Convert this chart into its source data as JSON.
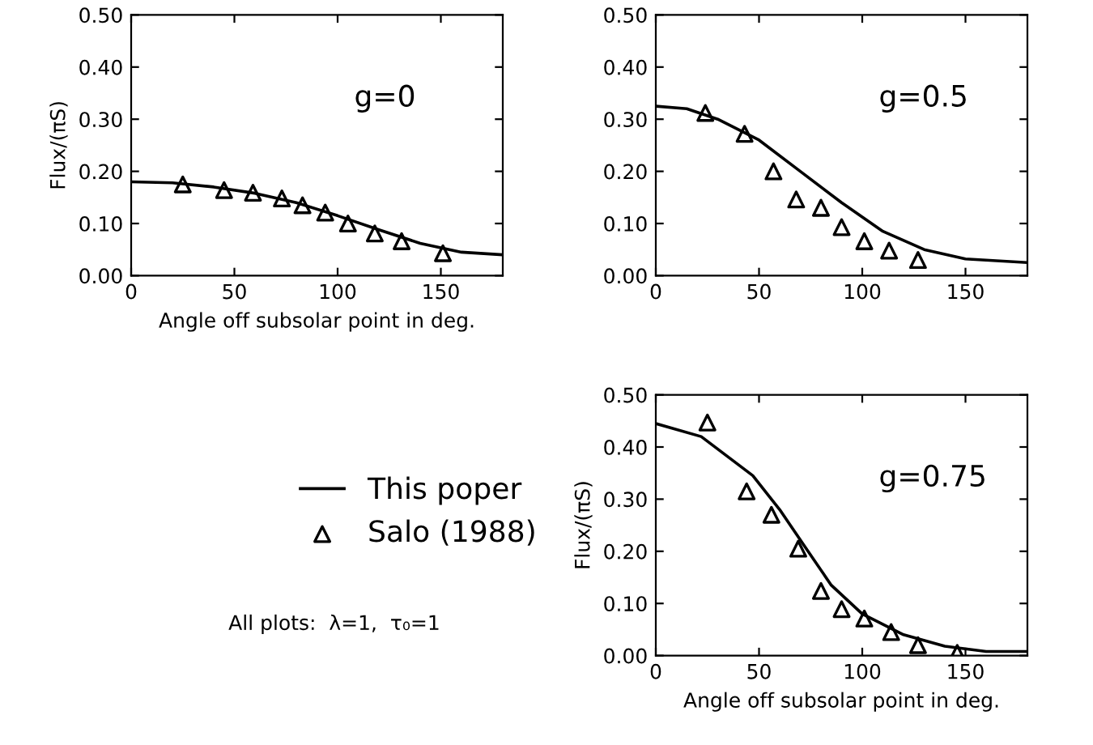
{
  "chart_data": [
    {
      "type": "line",
      "xlabel": "Angle off subsolar point in deg.",
      "ylabel": "Flux/(πS)",
      "annotations": [
        "g=0"
      ],
      "xlim": [
        0,
        180
      ],
      "ylim": [
        0,
        0.5
      ],
      "xticks": [
        0,
        50,
        100,
        150
      ],
      "yticks": [
        {
          "value": 0,
          "label": "0.00"
        },
        {
          "value": 0.1,
          "label": "0.10"
        },
        {
          "value": 0.2,
          "label": "0.20"
        },
        {
          "value": 0.3,
          "label": "0.30"
        },
        {
          "value": 0.4,
          "label": "0.40"
        },
        {
          "value": 0.5,
          "label": "0.50"
        }
      ],
      "grid": false,
      "series": [
        {
          "color": "#000000",
          "marker": "none",
          "x": [
            0,
            20,
            40,
            60,
            80,
            100,
            120,
            140,
            160,
            180
          ],
          "values": [
            0.18,
            0.178,
            0.17,
            0.158,
            0.14,
            0.115,
            0.088,
            0.062,
            0.045,
            0.04
          ]
        },
        {
          "type": "scatter",
          "color": "#000000",
          "marker": "triangle",
          "x": [
            25,
            45,
            59,
            73,
            83,
            94,
            105,
            118,
            131,
            151
          ],
          "values": [
            0.175,
            0.164,
            0.159,
            0.148,
            0.135,
            0.121,
            0.1,
            0.081,
            0.066,
            0.043
          ]
        }
      ]
    },
    {
      "type": "line",
      "annotations": [
        "g=0.5"
      ],
      "xlim": [
        0,
        180
      ],
      "ylim": [
        0,
        0.5
      ],
      "xticks": [
        0,
        50,
        100,
        150
      ],
      "yticks": [
        {
          "value": 0,
          "label": "0.00"
        },
        {
          "value": 0.1,
          "label": "0.10"
        },
        {
          "value": 0.2,
          "label": "0.20"
        },
        {
          "value": 0.3,
          "label": "0.30"
        },
        {
          "value": 0.4,
          "label": "0.40"
        },
        {
          "value": 0.5,
          "label": "0.50"
        }
      ],
      "grid": false,
      "series": [
        {
          "color": "#000000",
          "marker": "none",
          "x": [
            0,
            15,
            30,
            50,
            70,
            90,
            110,
            130,
            150,
            180
          ],
          "values": [
            0.325,
            0.32,
            0.3,
            0.26,
            0.2,
            0.14,
            0.085,
            0.05,
            0.032,
            0.025
          ]
        },
        {
          "type": "scatter",
          "color": "#000000",
          "marker": "triangle",
          "x": [
            24,
            43,
            57,
            68,
            80,
            90,
            101,
            113,
            127
          ],
          "values": [
            0.312,
            0.272,
            0.2,
            0.146,
            0.13,
            0.093,
            0.066,
            0.048,
            0.03
          ]
        }
      ]
    },
    {
      "type": "line",
      "xlabel": "Angle off subsolar point in deg.",
      "ylabel": "Flux/(πS)",
      "annotations": [
        "g=0.75",
        "All plots:  λ=1,  τ₀=1"
      ],
      "xlim": [
        0,
        180
      ],
      "ylim": [
        0,
        0.5
      ],
      "xticks": [
        0,
        50,
        100,
        150
      ],
      "yticks": [
        {
          "value": 0,
          "label": "0.00"
        },
        {
          "value": 0.1,
          "label": "0.10"
        },
        {
          "value": 0.2,
          "label": "0.20"
        },
        {
          "value": 0.3,
          "label": "0.30"
        },
        {
          "value": 0.4,
          "label": "0.40"
        },
        {
          "value": 0.5,
          "label": "0.50"
        }
      ],
      "grid": false,
      "legend": "left",
      "series": [
        {
          "name": "This poper",
          "color": "#000000",
          "marker": "none",
          "x": [
            0,
            22,
            47,
            60,
            72,
            85,
            100,
            120,
            140,
            160,
            180
          ],
          "values": [
            0.445,
            0.42,
            0.345,
            0.28,
            0.21,
            0.135,
            0.08,
            0.04,
            0.018,
            0.008,
            0.008
          ]
        },
        {
          "type": "scatter",
          "name": "Salo (1988)",
          "color": "#000000",
          "marker": "triangle",
          "x": [
            25,
            44,
            56,
            69,
            80,
            90,
            101,
            114,
            127,
            146
          ],
          "values": [
            0.447,
            0.315,
            0.27,
            0.205,
            0.124,
            0.089,
            0.071,
            0.045,
            0.02,
            0.005
          ]
        }
      ]
    }
  ]
}
